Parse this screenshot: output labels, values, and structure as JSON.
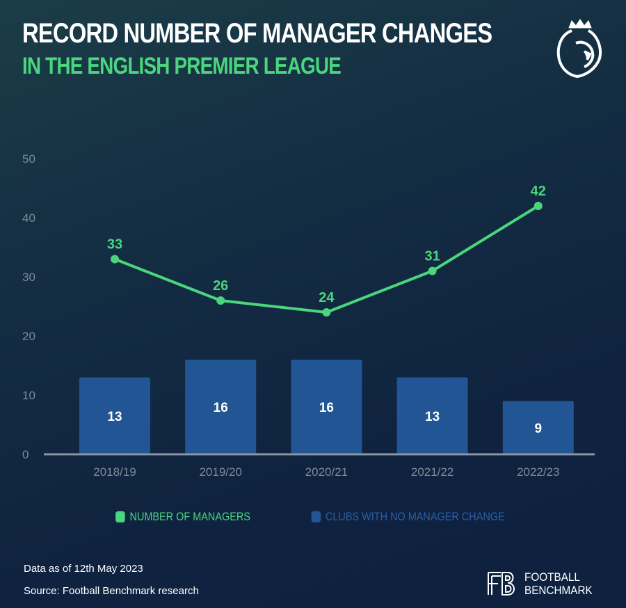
{
  "header": {
    "title": "RECORD NUMBER OF MANAGER CHANGES",
    "subtitle": "IN THE ENGLISH PREMIER LEAGUE",
    "logo": "premier-league-lion-logo"
  },
  "chart_data": {
    "type": "bar+line",
    "title": "RECORD NUMBER OF MANAGER CHANGES",
    "subtitle": "IN THE ENGLISH PREMIER LEAGUE",
    "categories": [
      "2018/19",
      "2019/20",
      "2020/21",
      "2021/22",
      "2022/23"
    ],
    "ylim": [
      0,
      50
    ],
    "yticks": [
      0,
      10,
      20,
      30,
      40,
      50
    ],
    "grid": false,
    "legend_placement": "bottom",
    "series": [
      {
        "name": "NUMBER OF MANAGERS",
        "type": "line",
        "color": "#49d67d",
        "values": [
          33,
          26,
          24,
          31,
          42
        ]
      },
      {
        "name": "CLUBS WITH NO MANAGER CHANGE",
        "type": "bar",
        "color": "#225593",
        "values": [
          13,
          16,
          16,
          13,
          9
        ]
      }
    ]
  },
  "footer": {
    "note": "Data as of 12th May 2023",
    "source": "Source: Football Benchmark research",
    "brand_line1": "FOOTBALL",
    "brand_line2": "BENCHMARK"
  }
}
